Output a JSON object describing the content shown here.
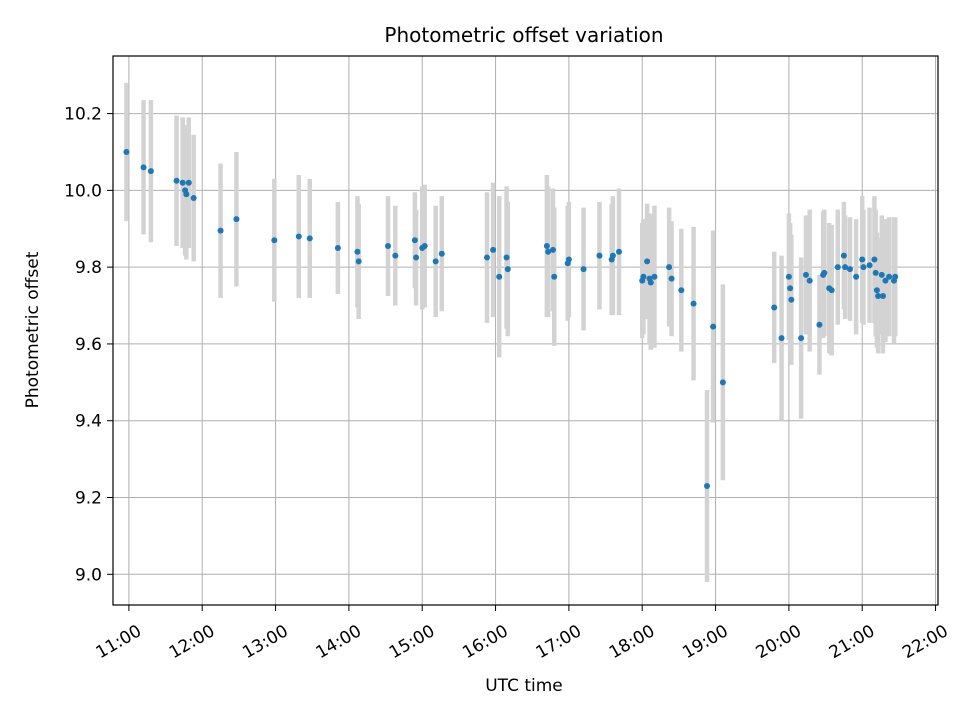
{
  "chart_data": {
    "type": "scatter",
    "title": "Photometric offset variation",
    "xlabel": "UTC time",
    "ylabel": "Photometric offset",
    "x_is_time": true,
    "xlim": [
      "10:47",
      "22:02"
    ],
    "ylim": [
      8.92,
      10.35
    ],
    "xticks": [
      "11:00",
      "12:00",
      "13:00",
      "14:00",
      "15:00",
      "16:00",
      "17:00",
      "18:00",
      "19:00",
      "20:00",
      "21:00",
      "22:00"
    ],
    "yticks": [
      "9.0",
      "9.2",
      "9.4",
      "9.6",
      "9.8",
      "10.0",
      "10.2"
    ],
    "grid": true,
    "legend": "none",
    "colors": {
      "point": "#1f77b4",
      "errorbar": "#d3d3d3",
      "grid": "#b0b0b0"
    },
    "series": [
      {
        "x": [
          "10:58",
          "11:12",
          "11:18",
          "11:39",
          "11:44",
          "11:46",
          "11:47",
          "11:49",
          "11:53",
          "12:15",
          "12:28",
          "12:59",
          "13:19",
          "13:28",
          "13:51",
          "14:07",
          "14:08",
          "14:32",
          "14:38",
          "14:54",
          "14:55",
          "15:00",
          "15:02",
          "15:11",
          "15:16",
          "15:53",
          "15:58",
          "16:03",
          "16:09",
          "16:10",
          "16:42",
          "16:43",
          "16:47",
          "16:48",
          "16:59",
          "17:00",
          "17:12",
          "17:25",
          "17:35",
          "17:36",
          "17:41",
          "18:00",
          "18:01",
          "18:04",
          "18:06",
          "18:07",
          "18:10",
          "18:22",
          "18:24",
          "18:32",
          "18:42",
          "18:53",
          "18:58",
          "19:06",
          "19:48",
          "19:54",
          "20:00",
          "20:01",
          "20:02",
          "20:10",
          "20:14",
          "20:17",
          "20:25",
          "20:28",
          "20:29",
          "20:33",
          "20:35",
          "20:40",
          "20:45",
          "20:46",
          "20:50",
          "20:55",
          "21:00",
          "21:01",
          "21:06",
          "21:10",
          "21:11",
          "21:12",
          "21:13",
          "21:16",
          "21:17",
          "21:19",
          "21:22",
          "21:26",
          "21:27"
        ],
        "y": [
          10.1,
          10.06,
          10.05,
          10.025,
          10.02,
          10.0,
          9.99,
          10.02,
          9.98,
          9.895,
          9.925,
          9.87,
          9.88,
          9.875,
          9.85,
          9.84,
          9.815,
          9.855,
          9.83,
          9.87,
          9.825,
          9.85,
          9.855,
          9.815,
          9.835,
          9.825,
          9.845,
          9.775,
          9.825,
          9.795,
          9.855,
          9.84,
          9.845,
          9.775,
          9.81,
          9.82,
          9.795,
          9.83,
          9.82,
          9.83,
          9.84,
          9.765,
          9.775,
          9.815,
          9.77,
          9.76,
          9.775,
          9.8,
          9.77,
          9.74,
          9.705,
          9.23,
          9.645,
          9.5,
          9.695,
          9.615,
          9.775,
          9.745,
          9.715,
          9.615,
          9.78,
          9.765,
          9.65,
          9.78,
          9.785,
          9.745,
          9.74,
          9.8,
          9.83,
          9.8,
          9.795,
          9.775,
          9.82,
          9.8,
          9.805,
          9.82,
          9.785,
          9.74,
          9.725,
          9.78,
          9.725,
          9.765,
          9.775,
          9.765,
          9.775
        ],
        "err": [
          0.18,
          0.175,
          0.185,
          0.17,
          0.17,
          0.17,
          0.17,
          0.17,
          0.165,
          0.175,
          0.175,
          0.16,
          0.16,
          0.155,
          0.12,
          0.145,
          0.15,
          0.13,
          0.13,
          0.125,
          0.125,
          0.16,
          0.16,
          0.145,
          0.15,
          0.17,
          0.175,
          0.21,
          0.185,
          0.175,
          0.185,
          0.17,
          0.16,
          0.18,
          0.15,
          0.15,
          0.16,
          0.14,
          0.145,
          0.155,
          0.165,
          0.15,
          0.15,
          0.15,
          0.17,
          0.175,
          0.185,
          0.155,
          0.15,
          0.16,
          0.2,
          0.25,
          0.25,
          0.255,
          0.145,
          0.215,
          0.165,
          0.17,
          0.17,
          0.21,
          0.155,
          0.185,
          0.13,
          0.165,
          0.165,
          0.17,
          0.17,
          0.15,
          0.14,
          0.135,
          0.135,
          0.15,
          0.165,
          0.15,
          0.15,
          0.165,
          0.165,
          0.15,
          0.15,
          0.155,
          0.15,
          0.16,
          0.155,
          0.165,
          0.155
        ]
      }
    ]
  }
}
